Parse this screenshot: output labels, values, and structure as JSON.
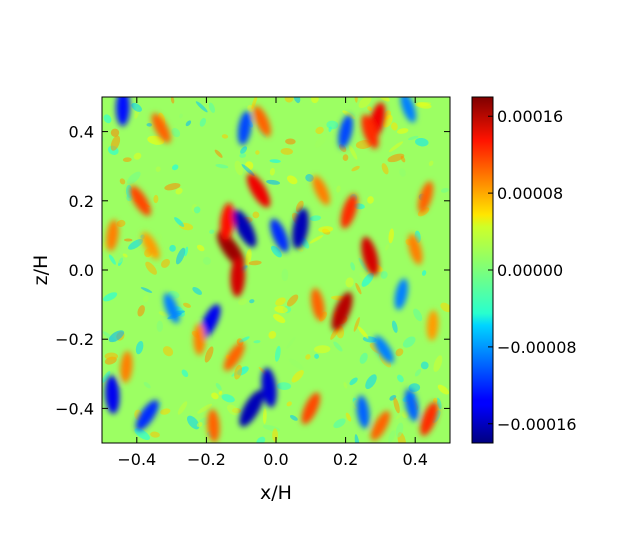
{
  "chart_data": {
    "type": "heatmap",
    "title": "",
    "xlabel": "x/H",
    "ylabel": "z/H",
    "xlim": [
      -0.5,
      0.5
    ],
    "ylim": [
      -0.5,
      0.5
    ],
    "x_ticks": [
      -0.4,
      -0.2,
      0.0,
      0.2,
      0.4
    ],
    "x_tick_labels": [
      "−0.4",
      "−0.2",
      "0.0",
      "0.2",
      "0.4"
    ],
    "y_ticks": [
      -0.4,
      -0.2,
      0.0,
      0.2,
      0.4
    ],
    "y_tick_labels": [
      "−0.4",
      "−0.2",
      "0.0",
      "0.2",
      "0.4"
    ],
    "grid": false,
    "colormap": "jet",
    "color_range": [
      -0.00018,
      0.00018
    ],
    "colorbar_ticks": [
      0.00016,
      8e-05,
      0.0,
      -8e-05,
      -0.00016
    ],
    "colorbar_tick_labels": [
      "0.00016",
      "0.00008",
      "0.00000",
      "−0.00008",
      "−0.00016"
    ],
    "background_value": 1e-05,
    "features": [
      {
        "x": -0.13,
        "z": 0.06,
        "value": 0.00017
      },
      {
        "x": -0.11,
        "z": -0.02,
        "value": 0.00015
      },
      {
        "x": -0.05,
        "z": 0.23,
        "value": 0.00014
      },
      {
        "x": -0.14,
        "z": 0.14,
        "value": 0.00013
      },
      {
        "x": -0.09,
        "z": 0.12,
        "value": -0.00016
      },
      {
        "x": 0.07,
        "z": 0.12,
        "value": -0.00016
      },
      {
        "x": 0.01,
        "z": 0.1,
        "value": -0.00012
      },
      {
        "x": 0.29,
        "z": 0.43,
        "value": 0.00014
      },
      {
        "x": 0.27,
        "z": 0.4,
        "value": 0.00012
      },
      {
        "x": 0.21,
        "z": 0.17,
        "value": 0.00012
      },
      {
        "x": 0.27,
        "z": 0.04,
        "value": 0.00015
      },
      {
        "x": 0.19,
        "z": -0.12,
        "value": 0.00016
      },
      {
        "x": 0.12,
        "z": -0.1,
        "value": 0.0001
      },
      {
        "x": -0.19,
        "z": -0.15,
        "value": -0.00014
      },
      {
        "x": -0.02,
        "z": -0.34,
        "value": -0.00015
      },
      {
        "x": -0.07,
        "z": -0.4,
        "value": -0.00016
      },
      {
        "x": -0.47,
        "z": -0.36,
        "value": -0.00014
      },
      {
        "x": -0.37,
        "z": -0.42,
        "value": -0.00012
      },
      {
        "x": -0.44,
        "z": 0.47,
        "value": -0.00013
      },
      {
        "x": -0.39,
        "z": 0.2,
        "value": 0.00011
      },
      {
        "x": -0.43,
        "z": -0.28,
        "value": 9e-05
      },
      {
        "x": -0.33,
        "z": 0.41,
        "value": 0.0001
      },
      {
        "x": -0.09,
        "z": 0.41,
        "value": -0.00011
      },
      {
        "x": -0.04,
        "z": 0.43,
        "value": 0.0001
      },
      {
        "x": 0.2,
        "z": 0.4,
        "value": -0.00011
      },
      {
        "x": 0.38,
        "z": 0.47,
        "value": -9e-05
      },
      {
        "x": 0.43,
        "z": 0.21,
        "value": 0.0001
      },
      {
        "x": 0.4,
        "z": 0.06,
        "value": 9e-05
      },
      {
        "x": 0.44,
        "z": -0.43,
        "value": 0.00012
      },
      {
        "x": 0.39,
        "z": -0.39,
        "value": -0.0001
      },
      {
        "x": 0.1,
        "z": -0.4,
        "value": 0.00011
      },
      {
        "x": 0.25,
        "z": -0.41,
        "value": -0.0001
      },
      {
        "x": 0.3,
        "z": -0.45,
        "value": 0.0001
      },
      {
        "x": -0.18,
        "z": -0.45,
        "value": 0.0001
      },
      {
        "x": -0.12,
        "z": -0.25,
        "value": 0.0001
      },
      {
        "x": -0.22,
        "z": -0.2,
        "value": 9e-05
      },
      {
        "x": 0.31,
        "z": -0.23,
        "value": -9e-05
      },
      {
        "x": 0.45,
        "z": -0.16,
        "value": 8e-05
      },
      {
        "x": -0.36,
        "z": 0.07,
        "value": 8e-05
      },
      {
        "x": -0.47,
        "z": 0.1,
        "value": 9e-05
      },
      {
        "x": 0.13,
        "z": 0.23,
        "value": 9e-05
      },
      {
        "x": 0.36,
        "z": -0.07,
        "value": -9e-05
      },
      {
        "x": -0.3,
        "z": -0.11,
        "value": -9e-05
      }
    ]
  }
}
